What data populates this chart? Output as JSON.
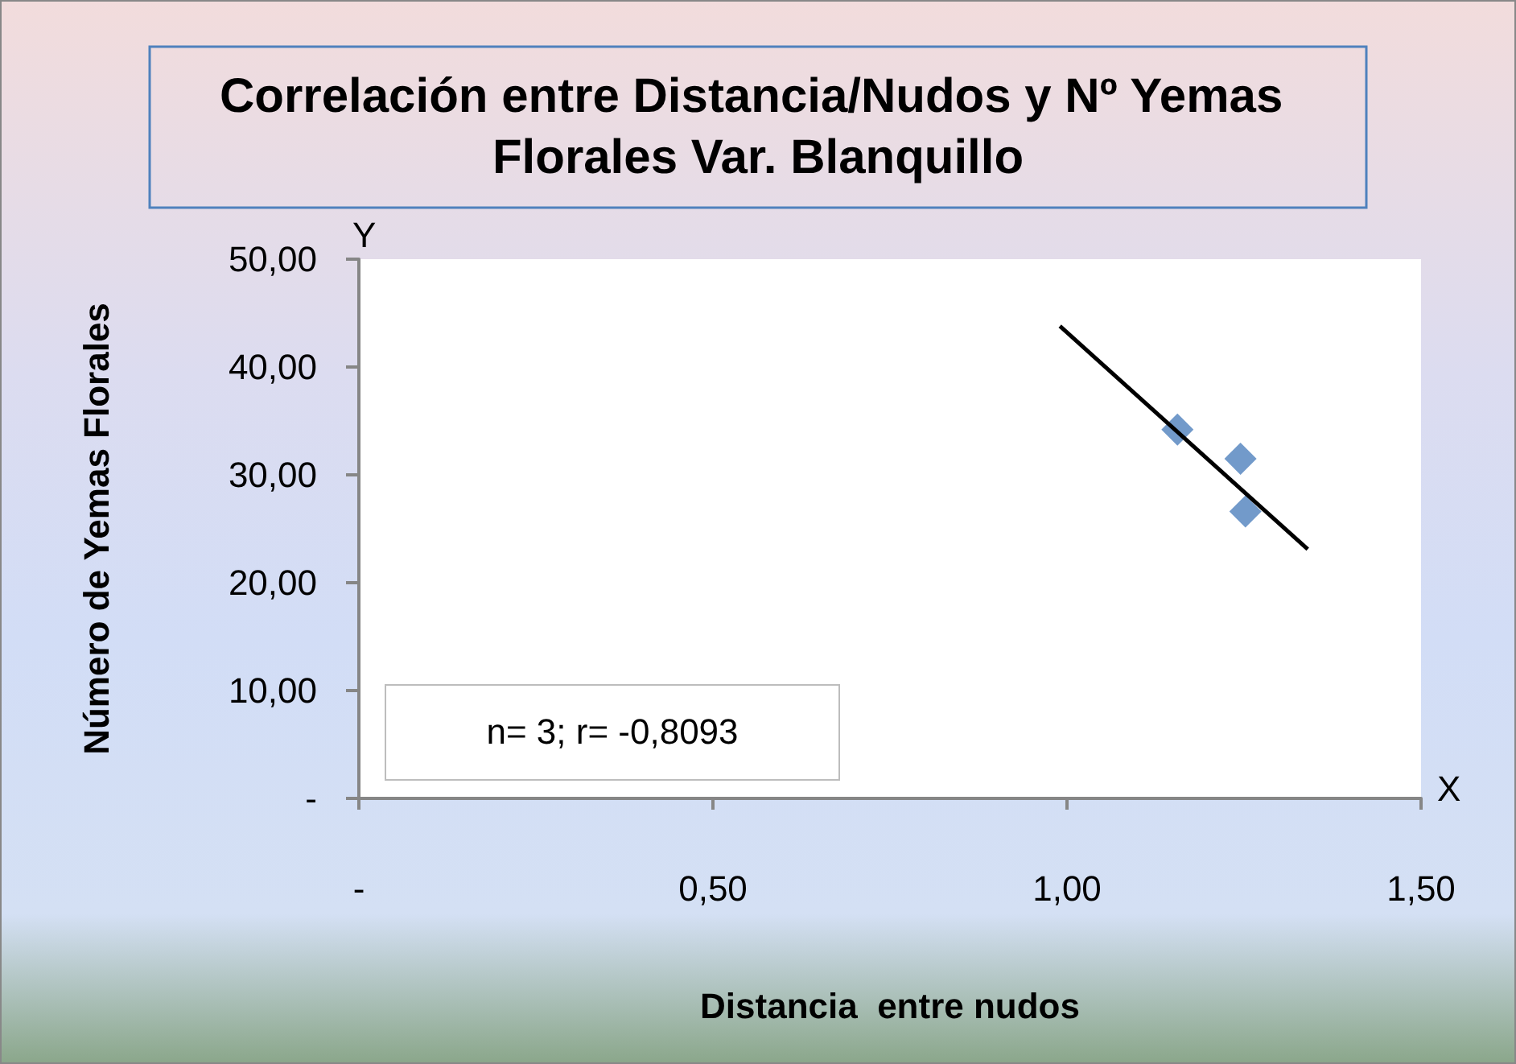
{
  "chart_data": {
    "type": "scatter",
    "title": "Correlación entre Distancia/Nudos y Nº Yemas Florales Var. Blanquillo",
    "xlabel": "Distancia  entre nudos",
    "ylabel": "Número de Yemas Florales",
    "annotations": [
      "n= 3; r= -0,8093",
      "Y",
      "X"
    ],
    "xlim": [
      0,
      1.5
    ],
    "xticks": [
      {
        "value": 0,
        "label": "-"
      },
      {
        "value": 0.5,
        "label": "0,50"
      },
      {
        "value": 1,
        "label": "1,00"
      },
      {
        "value": 1.5,
        "label": "1,50"
      }
    ],
    "ylim": [
      0,
      50
    ],
    "yticks": [
      {
        "value": 0,
        "label": "-"
      },
      {
        "value": 10,
        "label": "10,00"
      },
      {
        "value": 20,
        "label": "20,00"
      },
      {
        "value": 30,
        "label": "30,00"
      },
      {
        "value": 40,
        "label": "40,00"
      },
      {
        "value": 50,
        "label": "50,00"
      }
    ],
    "grid": false,
    "series": [
      {
        "type": "scatter",
        "marker": "diamond",
        "color": "#4f81bd",
        "x": [
          1.156,
          1.245,
          1.252
        ],
        "values": [
          34.2,
          31.5,
          26.6
        ]
      },
      {
        "type": "line",
        "marker": "none",
        "color": "#000000",
        "x": [
          0.99,
          1.34
        ],
        "values": [
          43.8,
          23.1
        ]
      }
    ]
  }
}
